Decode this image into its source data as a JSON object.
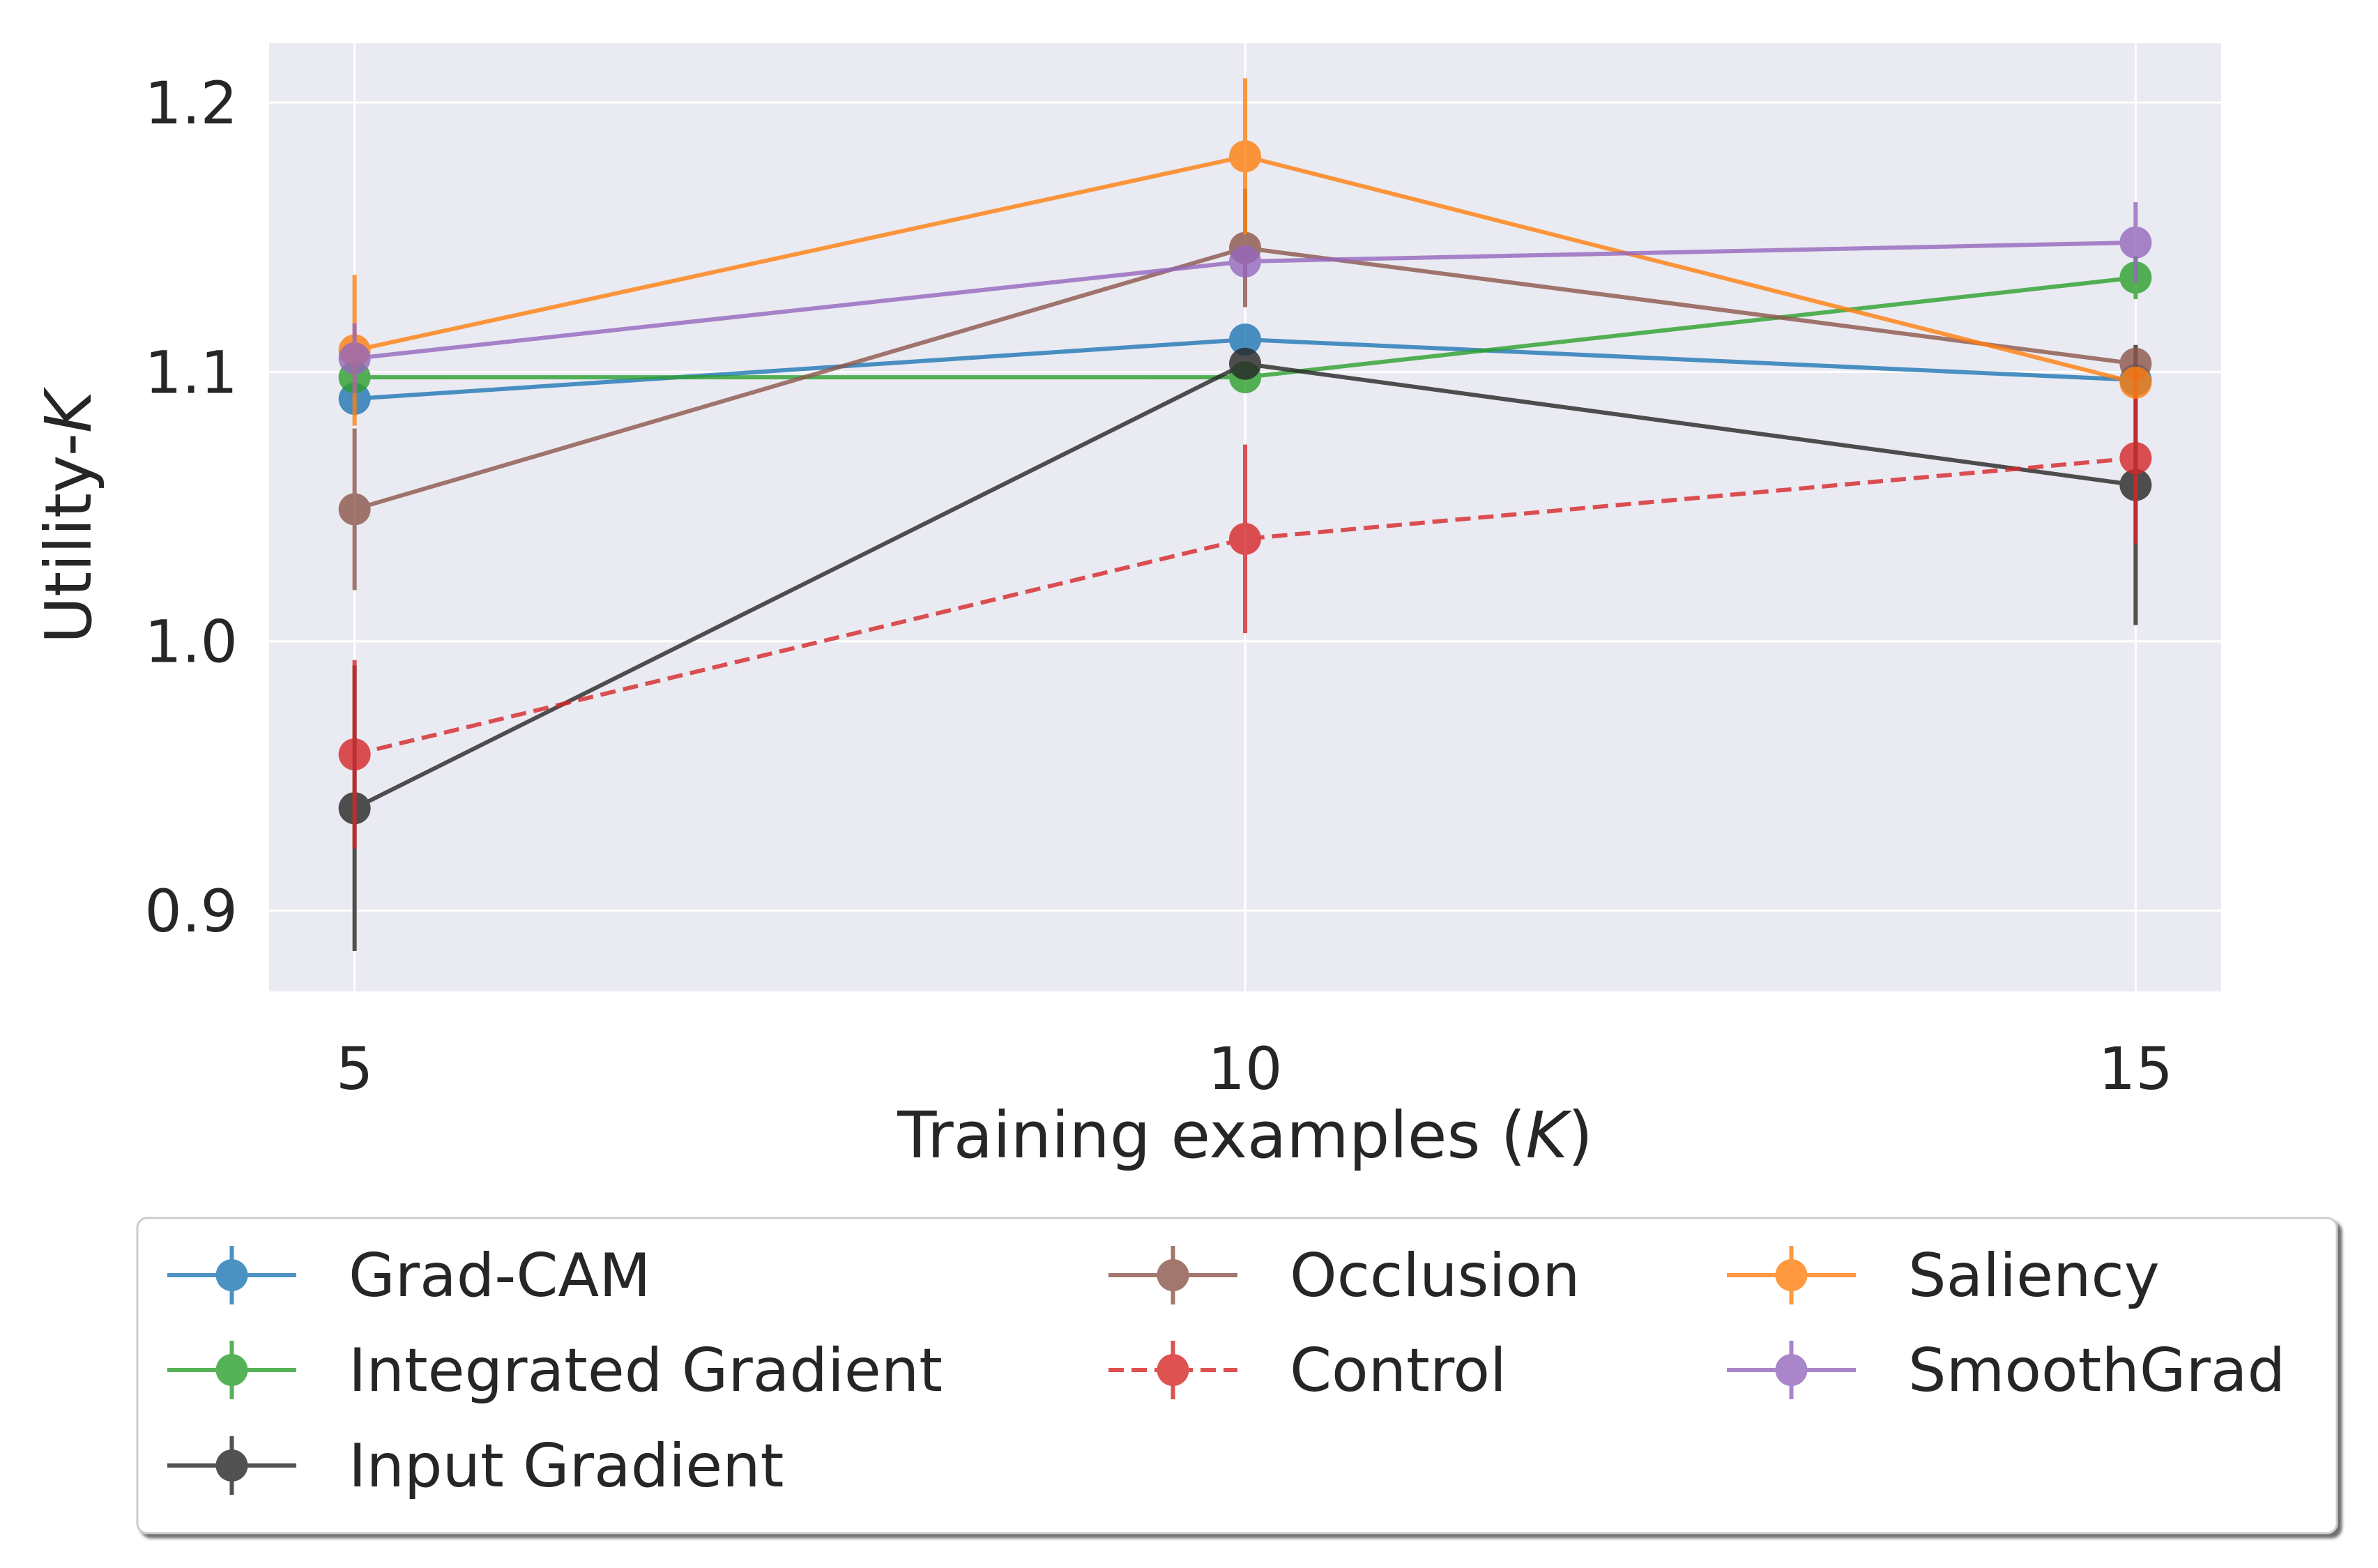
{
  "chart_data": {
    "type": "line",
    "xlabel": "Training examples (K)",
    "xlabel_prefix": "Training examples (",
    "xlabel_var": "K",
    "xlabel_suffix": ")",
    "ylabel": "Utility-K",
    "ylabel_prefix": "Utility-",
    "ylabel_var": "K",
    "x": [
      5,
      10,
      15
    ],
    "x_tick_labels": [
      "5",
      "10",
      "15"
    ],
    "xlim": [
      4.52,
      15.48
    ],
    "ylim": [
      0.87,
      1.222
    ],
    "y_ticks": [
      0.9,
      1.0,
      1.1,
      1.2
    ],
    "y_tick_labels": [
      "0.9",
      "1.0",
      "1.1",
      "1.2"
    ],
    "grid": true,
    "legend_position": "bottom-center",
    "series": [
      {
        "name": "Grad-CAM",
        "color": "#1f77b4",
        "dashed": false,
        "values": [
          1.09,
          1.112,
          1.097
        ],
        "errors": [
          0.0,
          0.0,
          0.0
        ]
      },
      {
        "name": "Integrated Gradient",
        "color": "#2ca02c",
        "dashed": false,
        "values": [
          1.098,
          1.098,
          1.135
        ],
        "errors": [
          0.0,
          0.0,
          0.008
        ]
      },
      {
        "name": "Input Gradient",
        "color": "#262626",
        "dashed": false,
        "values": [
          0.938,
          1.103,
          1.058
        ],
        "errors": [
          0.053,
          0.0,
          0.052
        ]
      },
      {
        "name": "Occlusion",
        "color": "#8c564b",
        "dashed": false,
        "values": [
          1.049,
          1.146,
          1.103
        ],
        "errors": [
          0.03,
          0.022,
          0.0
        ]
      },
      {
        "name": "Control",
        "color": "#d62728",
        "dashed": true,
        "values": [
          0.958,
          1.038,
          1.068
        ],
        "errors": [
          0.035,
          0.035,
          0.032
        ]
      },
      {
        "name": "Saliency",
        "color": "#ff7f0e",
        "dashed": false,
        "values": [
          1.108,
          1.18,
          1.096
        ],
        "errors": [
          0.028,
          0.029,
          0.0
        ]
      },
      {
        "name": "SmoothGrad",
        "color": "#9467bd",
        "dashed": false,
        "values": [
          1.105,
          1.141,
          1.148
        ],
        "errors": [
          0.013,
          0.0,
          0.015
        ]
      }
    ]
  }
}
